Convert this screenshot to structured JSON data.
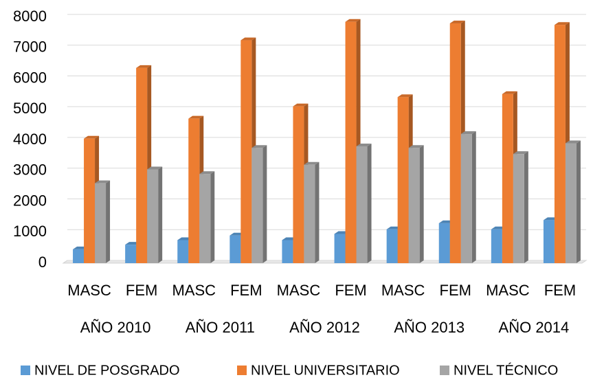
{
  "chart_data": {
    "type": "bar3d",
    "categories": [
      "MASC",
      "FEM",
      "MASC",
      "FEM",
      "MASC",
      "FEM",
      "MASC",
      "FEM",
      "MASC",
      "FEM"
    ],
    "groups": [
      "AÑO 2010",
      "AÑO 2011",
      "AÑO 2012",
      "AÑO 2013",
      "AÑO 2014"
    ],
    "series": [
      {
        "name": "NIVEL DE POSGRADO",
        "color": "#5b9bd5",
        "values": [
          450,
          600,
          750,
          900,
          750,
          950,
          1100,
          1300,
          1100,
          1400
        ]
      },
      {
        "name": "NIVEL UNIVERSITARIO",
        "color": "#ed7d31",
        "values": [
          4050,
          6350,
          4700,
          7250,
          5100,
          7850,
          5400,
          7800,
          5500,
          7750
        ]
      },
      {
        "name": "NIVEL TÉCNICO",
        "color": "#a5a5a5",
        "values": [
          2600,
          3050,
          2900,
          3750,
          3200,
          3800,
          3750,
          4200,
          3550,
          3900
        ]
      }
    ],
    "ylim": [
      0,
      8000
    ],
    "yticks": [
      0,
      1000,
      2000,
      3000,
      4000,
      5000,
      6000,
      7000,
      8000
    ],
    "grid": true,
    "legend": "bottom"
  }
}
